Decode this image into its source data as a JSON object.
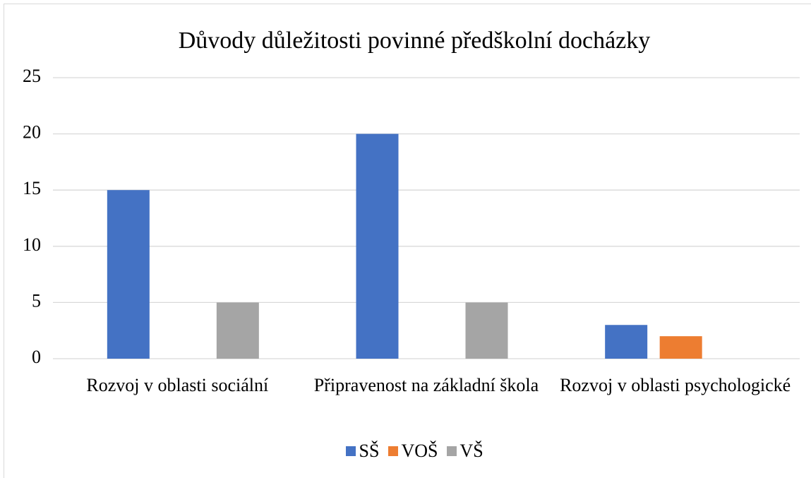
{
  "chart_data": {
    "type": "bar",
    "title": "Důvody důležitosti povinné předškolní docházky",
    "categories": [
      "Rozvoj v oblasti sociální",
      "Připravenost na základní škola",
      "Rozvoj v oblasti psychologické"
    ],
    "series": [
      {
        "name": "SŠ",
        "color": "#4472c4",
        "values": [
          15,
          20,
          3
        ]
      },
      {
        "name": "VOŠ",
        "color": "#ed7d31",
        "values": [
          0,
          0,
          2
        ]
      },
      {
        "name": "VŠ",
        "color": "#a5a5a5",
        "values": [
          5,
          5,
          0
        ]
      }
    ],
    "ylim": [
      0,
      25
    ],
    "yticks": [
      0,
      5,
      10,
      15,
      20,
      25
    ],
    "grid": true,
    "legend": "bottom"
  }
}
